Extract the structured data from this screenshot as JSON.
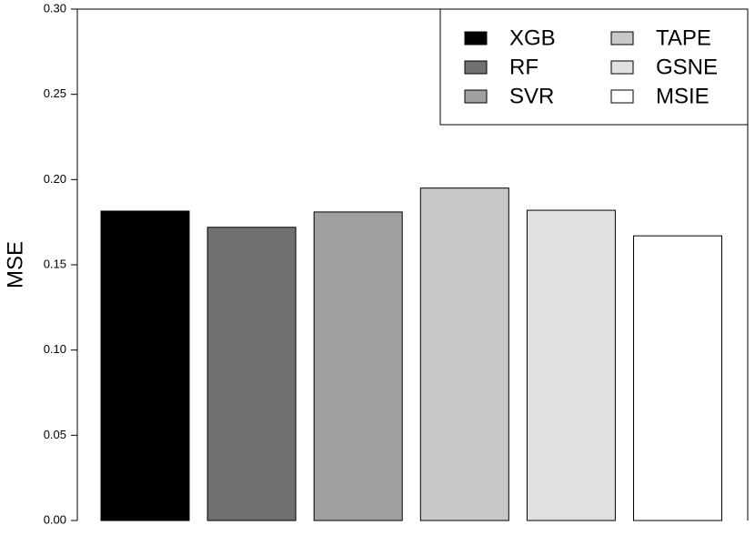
{
  "chart_data": {
    "type": "bar",
    "y_label": "MSE",
    "series": [
      {
        "name": "XGB",
        "color": "#000000",
        "values": [
          0.1815
        ]
      },
      {
        "name": "RF",
        "color": "#707070",
        "values": [
          0.172
        ]
      },
      {
        "name": "SVR",
        "color": "#a0a0a0",
        "values": [
          0.181
        ]
      },
      {
        "name": "TAPE",
        "color": "#c8c8c8",
        "values": [
          0.195
        ]
      },
      {
        "name": "GSNE",
        "color": "#e0e0e0",
        "values": [
          0.182
        ]
      },
      {
        "name": "MSIE",
        "color": "#ffffff",
        "values": [
          0.167
        ]
      }
    ],
    "ylim": [
      0,
      0.3
    ],
    "yticks": [
      {
        "value": 0,
        "label": "0.00"
      },
      {
        "value": 0.05,
        "label": "0.05"
      },
      {
        "value": 0.1,
        "label": "0.10"
      },
      {
        "value": 0.15,
        "label": "0.15"
      },
      {
        "value": 0.2,
        "label": "0.20"
      },
      {
        "value": 0.25,
        "label": "0.25"
      },
      {
        "value": 0.3,
        "label": "0.30"
      }
    ],
    "legend": "top-right"
  }
}
